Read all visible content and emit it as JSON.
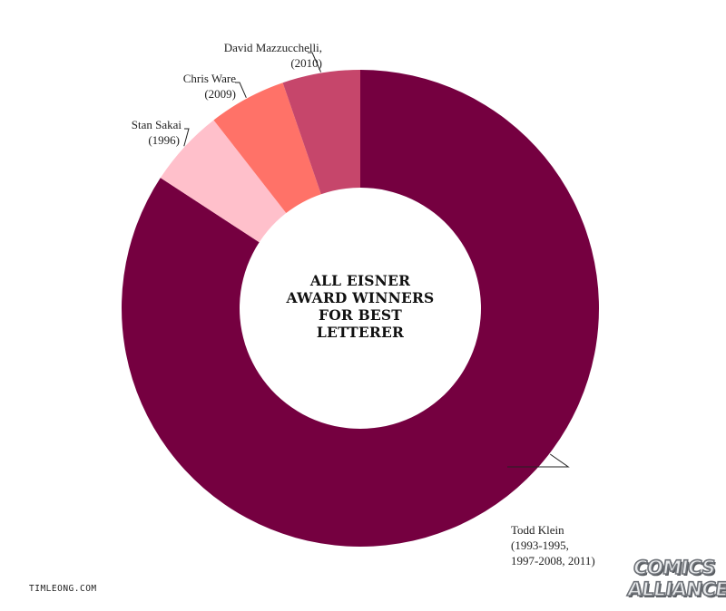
{
  "chart_data": {
    "type": "pie",
    "title": "ALL EISNER AWARD WINNERS FOR BEST LETTERER",
    "title_lines": [
      "ALL EISNER",
      "AWARD WINNERS",
      "FOR BEST",
      "LETTERER"
    ],
    "categories": [
      "Todd Klein",
      "Stan Sakai",
      "Chris Ware",
      "David Mazzucchelli,"
    ],
    "values": [
      16,
      1,
      1,
      1
    ],
    "slice_labels": [
      [
        "Todd Klein",
        "(1993-1995,",
        "1997-2008, 2011)"
      ],
      [
        "Stan Sakai",
        "(1996)"
      ],
      [
        "Chris Ware",
        "(2009)"
      ],
      [
        "David Mazzucchelli,",
        "(2010)"
      ]
    ],
    "colors": [
      "#750040",
      "#ffc0cb",
      "#ff7268",
      "#c6466b"
    ],
    "style": "donut"
  },
  "footer": {
    "credit": "TIMLEONG.COM",
    "logo_line1": "COMICS",
    "logo_line2": "ALLIANCE"
  },
  "colors": {
    "background": "#ffffff",
    "leader_line": "#222222"
  }
}
